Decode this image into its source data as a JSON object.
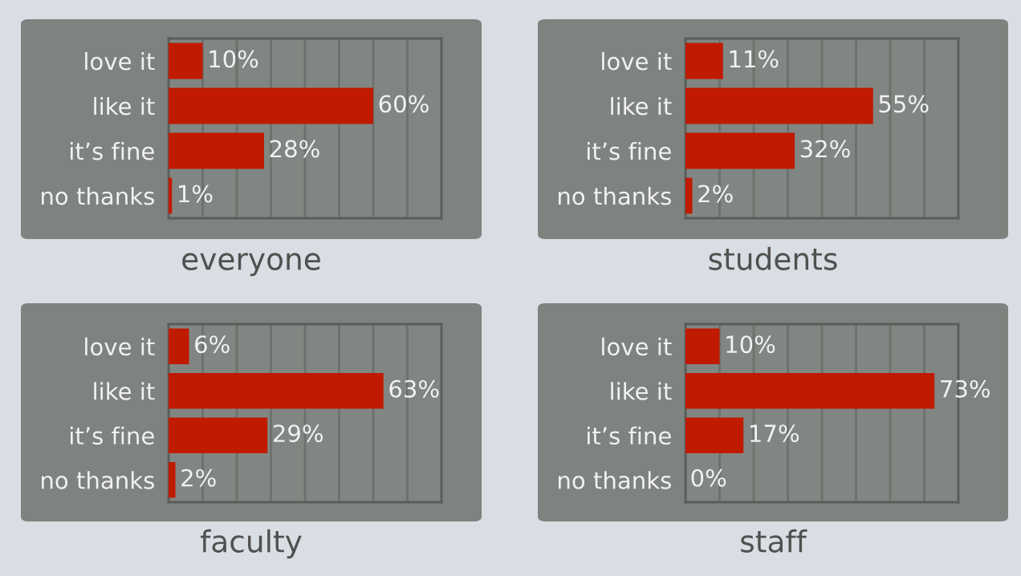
{
  "chart_data": [
    {
      "type": "bar",
      "orientation": "horizontal",
      "title": "everyone",
      "categories": [
        "love it",
        "like it",
        "it’s fine",
        "no thanks"
      ],
      "values": [
        10,
        60,
        28,
        1
      ],
      "value_labels": [
        "10%",
        "60%",
        "28%",
        "1%"
      ],
      "color": "#c01a00",
      "xlim": [
        0,
        80
      ],
      "xticks": [
        {
          "value": 0,
          "label": null
        },
        {
          "value": 10,
          "label": null
        },
        {
          "value": 20,
          "label": null
        },
        {
          "value": 30,
          "label": null
        },
        {
          "value": 40,
          "label": null
        },
        {
          "value": 50,
          "label": null
        },
        {
          "value": 60,
          "label": null
        },
        {
          "value": 70,
          "label": null
        },
        {
          "value": 80,
          "label": null
        }
      ],
      "grid": "x",
      "tick_labels": "y",
      "legend": false
    },
    {
      "type": "bar",
      "orientation": "horizontal",
      "title": "students",
      "categories": [
        "love it",
        "like it",
        "it’s fine",
        "no thanks"
      ],
      "values": [
        11,
        55,
        32,
        2
      ],
      "value_labels": [
        "11%",
        "55%",
        "32%",
        "2%"
      ],
      "color": "#c01a00",
      "xlim": [
        0,
        80
      ],
      "xticks": [
        {
          "value": 0,
          "label": null
        },
        {
          "value": 10,
          "label": null
        },
        {
          "value": 20,
          "label": null
        },
        {
          "value": 30,
          "label": null
        },
        {
          "value": 40,
          "label": null
        },
        {
          "value": 50,
          "label": null
        },
        {
          "value": 60,
          "label": null
        },
        {
          "value": 70,
          "label": null
        },
        {
          "value": 80,
          "label": null
        }
      ],
      "grid": "x",
      "tick_labels": "y",
      "legend": false
    },
    {
      "type": "bar",
      "orientation": "horizontal",
      "title": "faculty",
      "categories": [
        "love it",
        "like it",
        "it’s fine",
        "no thanks"
      ],
      "values": [
        6,
        63,
        29,
        2
      ],
      "value_labels": [
        "6%",
        "63%",
        "29%",
        "2%"
      ],
      "color": "#c01a00",
      "xlim": [
        0,
        80
      ],
      "xticks": [
        {
          "value": 0,
          "label": null
        },
        {
          "value": 10,
          "label": null
        },
        {
          "value": 20,
          "label": null
        },
        {
          "value": 30,
          "label": null
        },
        {
          "value": 40,
          "label": null
        },
        {
          "value": 50,
          "label": null
        },
        {
          "value": 60,
          "label": null
        },
        {
          "value": 70,
          "label": null
        },
        {
          "value": 80,
          "label": null
        }
      ],
      "grid": "x",
      "tick_labels": "y",
      "legend": false
    },
    {
      "type": "bar",
      "orientation": "horizontal",
      "title": "staff",
      "categories": [
        "love it",
        "like it",
        "it’s fine",
        "no thanks"
      ],
      "values": [
        10,
        73,
        17,
        0
      ],
      "value_labels": [
        "10%",
        "73%",
        "17%",
        "0%"
      ],
      "color": "#c01a00",
      "xlim": [
        0,
        80
      ],
      "xticks": [
        {
          "value": 0,
          "label": null
        },
        {
          "value": 10,
          "label": null
        },
        {
          "value": 20,
          "label": null
        },
        {
          "value": 30,
          "label": null
        },
        {
          "value": 40,
          "label": null
        },
        {
          "value": 50,
          "label": null
        },
        {
          "value": 60,
          "label": null
        },
        {
          "value": 70,
          "label": null
        },
        {
          "value": 80,
          "label": null
        }
      ],
      "grid": "x",
      "tick_labels": "y",
      "legend": false
    }
  ]
}
